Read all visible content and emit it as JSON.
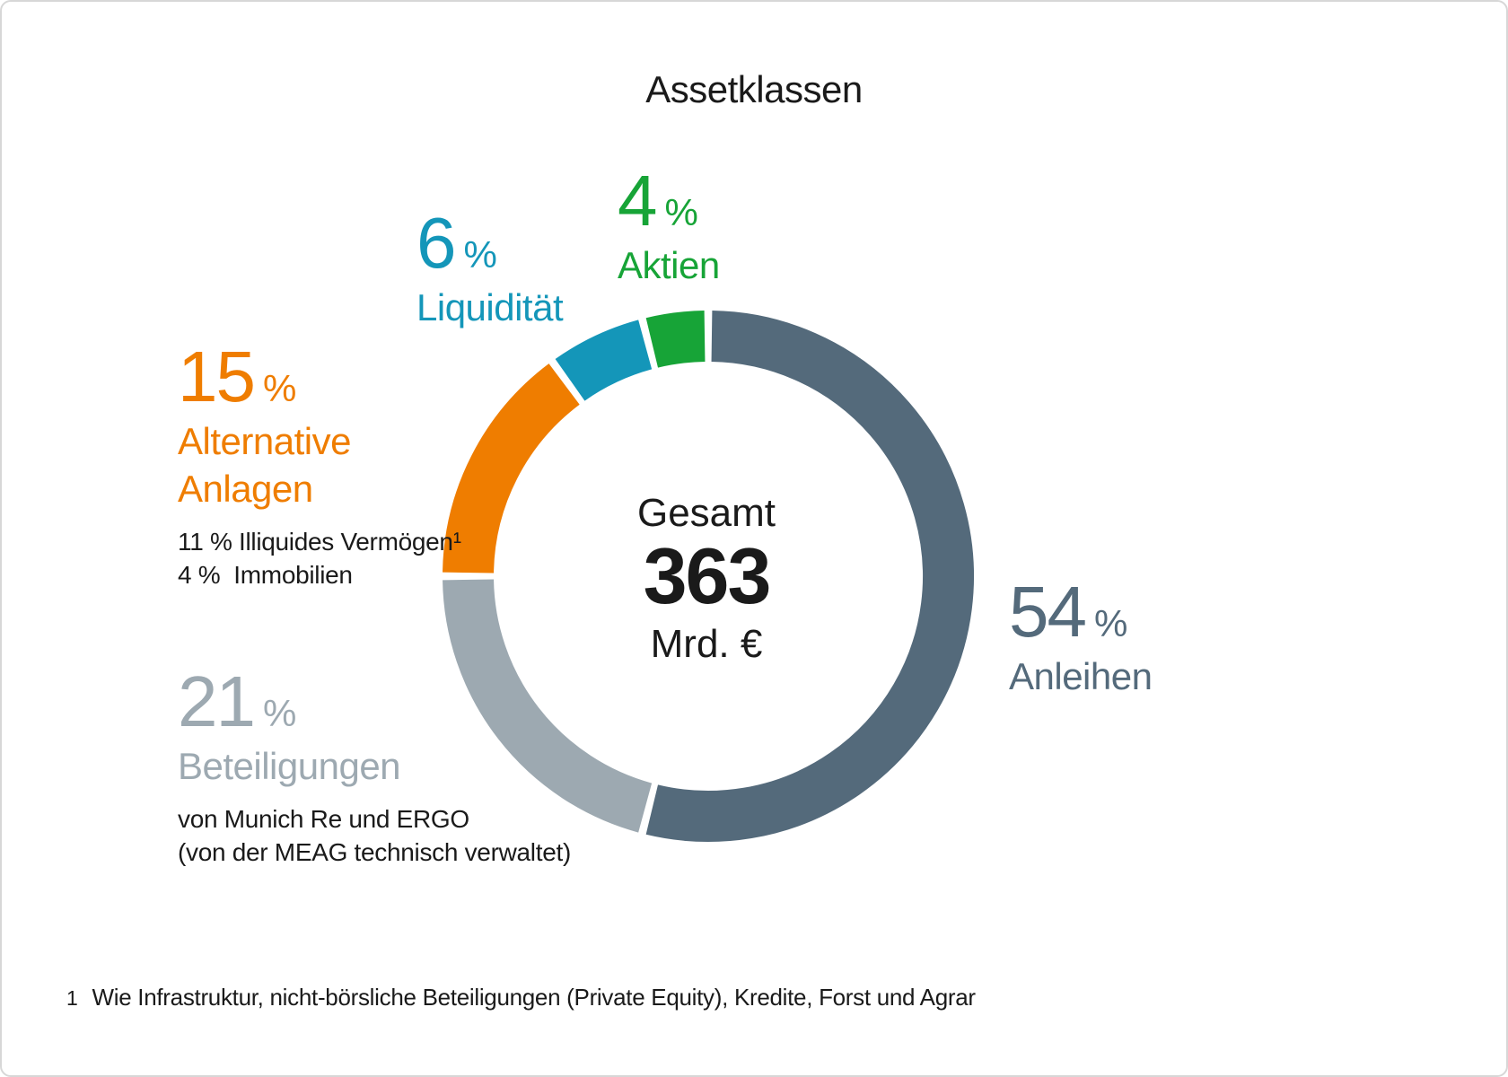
{
  "ui": {
    "percent_sign": "%"
  },
  "chart_data": {
    "type": "pie",
    "variant": "donut",
    "title": "Assetklassen",
    "unit": "%",
    "start_angle_deg": 0,
    "direction": "clockwise",
    "legend_position": "around-callouts",
    "center": {
      "label": "Gesamt",
      "value": "363",
      "unit": "Mrd. €"
    },
    "segments": [
      {
        "label": "Anleihen",
        "value": 54,
        "color": "#546A7B"
      },
      {
        "label": "Beteiligungen",
        "value": 21,
        "color": "#9DA9B1",
        "notes": [
          "von Munich Re und ERGO",
          "(von der MEAG technisch verwaltet)"
        ]
      },
      {
        "label": "Alternative Anlagen",
        "label_lines": [
          "Alternative",
          "Anlagen"
        ],
        "value": 15,
        "color": "#EF7D00",
        "notes": [
          "11 % Illiquides Vermögen¹",
          "4 %  Immobilien"
        ]
      },
      {
        "label": "Liquidität",
        "value": 6,
        "color": "#1496B9"
      },
      {
        "label": "Aktien",
        "value": 4,
        "color": "#17A437"
      }
    ],
    "footnote_marker": "1",
    "footnote": "Wie Infrastruktur, nicht-börsliche Beteiligungen (Private Equity), Kredite, Forst und Agrar"
  }
}
